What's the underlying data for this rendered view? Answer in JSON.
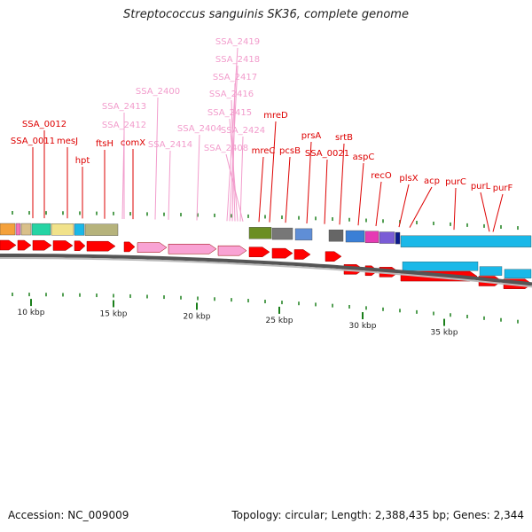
{
  "title": "Streptococcus sanguinis SK36, complete genome",
  "footer": {
    "accession": "Accession: NC_009009",
    "topology": "Topology: circular; Length: 2,388,435 bp; Genes: 2,344"
  },
  "colors": {
    "label_red": "#dd0000",
    "label_pink": "#f29ccc",
    "gene_red": "#ff0000",
    "gene_pink": "#f9a3d4",
    "tick_green": "#1a7f1a",
    "backbone": "#888888",
    "cyan": "#1ab8e8",
    "olive": "#b6b37c",
    "grey": "#777777"
  },
  "scale": {
    "ticks": [
      "10 kbp",
      "15 kbp",
      "20 kbp",
      "25 kbp",
      "30 kbp",
      "35 kbp"
    ]
  },
  "gene_labels": [
    {
      "text": "SSA_0012",
      "color": "red"
    },
    {
      "text": "SSA_0011",
      "color": "red"
    },
    {
      "text": "mesJ",
      "color": "red"
    },
    {
      "text": "hpt",
      "color": "red"
    },
    {
      "text": "ftsH",
      "color": "red"
    },
    {
      "text": "comX",
      "color": "red"
    },
    {
      "text": "SSA_2413",
      "color": "pink"
    },
    {
      "text": "SSA_2412",
      "color": "pink"
    },
    {
      "text": "SSA_2400",
      "color": "pink"
    },
    {
      "text": "SSA_2414",
      "color": "pink"
    },
    {
      "text": "SSA_2404",
      "color": "pink"
    },
    {
      "text": "SSA_2419",
      "color": "pink"
    },
    {
      "text": "SSA_2418",
      "color": "pink"
    },
    {
      "text": "SSA_2417",
      "color": "pink"
    },
    {
      "text": "SSA_2416",
      "color": "pink"
    },
    {
      "text": "SSA_2415",
      "color": "pink"
    },
    {
      "text": "SSA_2424",
      "color": "pink"
    },
    {
      "text": "SSA_2408",
      "color": "pink"
    },
    {
      "text": "mreD",
      "color": "red"
    },
    {
      "text": "mreC",
      "color": "red"
    },
    {
      "text": "pcsB",
      "color": "red"
    },
    {
      "text": "prsA",
      "color": "red"
    },
    {
      "text": "SSA_0021",
      "color": "red"
    },
    {
      "text": "srtB",
      "color": "red"
    },
    {
      "text": "aspC",
      "color": "red"
    },
    {
      "text": "recO",
      "color": "red"
    },
    {
      "text": "plsX",
      "color": "red"
    },
    {
      "text": "acp",
      "color": "red"
    },
    {
      "text": "purC",
      "color": "red"
    },
    {
      "text": "purL",
      "color": "red"
    },
    {
      "text": "purF",
      "color": "red"
    }
  ]
}
